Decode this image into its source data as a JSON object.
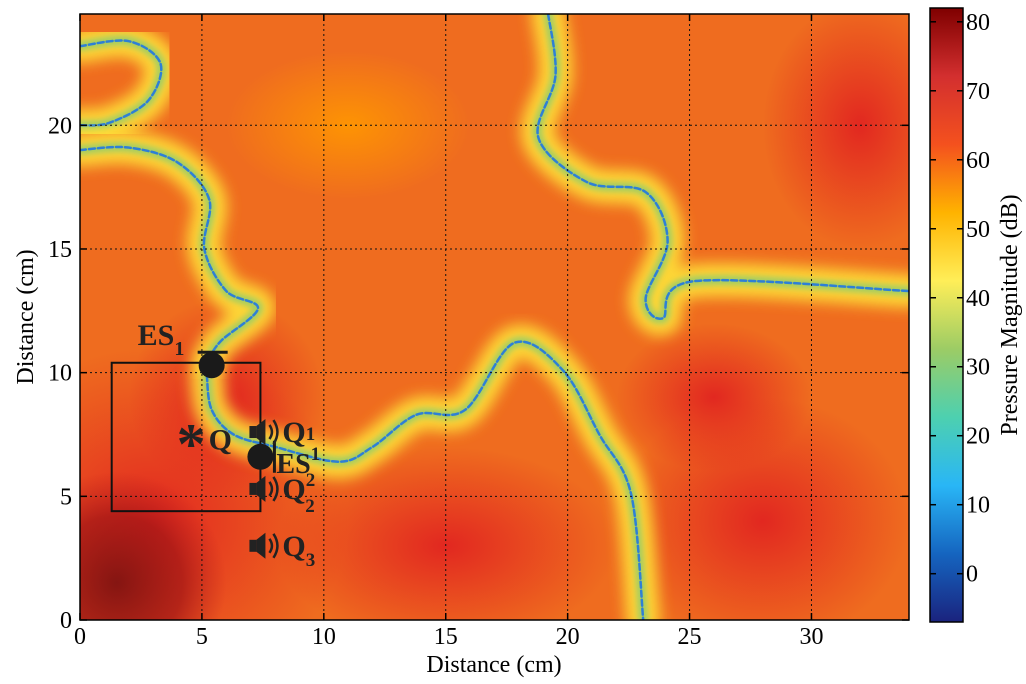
{
  "chart_data": {
    "type": "heatmap",
    "title": "",
    "xlabel": "Distance (cm)",
    "ylabel": "Distance (cm)",
    "xlim": [
      0,
      34
    ],
    "ylim": [
      0,
      24.5
    ],
    "x_ticks": [
      0,
      5,
      10,
      15,
      20,
      25,
      30
    ],
    "y_ticks": [
      0,
      5,
      10,
      15,
      20
    ],
    "grid": true,
    "colorbar": {
      "label": "Pressure Magnitude (dB)",
      "range": [
        -7,
        82
      ],
      "ticks": [
        0,
        10,
        20,
        30,
        40,
        50,
        60,
        70,
        80
      ],
      "colors": [
        "#1a237e",
        "#1565c0",
        "#29b6f6",
        "#4dd0b0",
        "#9ccc65",
        "#ffee58",
        "#ffb300",
        "#f4511e",
        "#d32f2f",
        "#7f0000"
      ]
    },
    "nodal_lines": [
      [
        [
          0,
          23.2
        ],
        [
          2,
          23.4
        ],
        [
          3.3,
          22.5
        ],
        [
          2.8,
          21
        ],
        [
          1.2,
          20.1
        ],
        [
          0,
          20
        ]
      ],
      [
        [
          0,
          19
        ],
        [
          2,
          19.1
        ],
        [
          4,
          18.5
        ],
        [
          5.3,
          17
        ],
        [
          5.1,
          15
        ],
        [
          6,
          13.3
        ],
        [
          7.3,
          12.6
        ],
        [
          5.8,
          11.3
        ],
        [
          5.3,
          10.6
        ]
      ],
      [
        [
          5.2,
          9.9
        ],
        [
          5.4,
          8.5
        ],
        [
          6.3,
          7.5
        ],
        [
          8,
          7
        ],
        [
          10.6,
          6.4
        ],
        [
          12,
          7
        ],
        [
          13.8,
          8.3
        ],
        [
          15.8,
          8.5
        ],
        [
          17.8,
          11.2
        ],
        [
          19.8,
          10.1
        ],
        [
          21.3,
          7.5
        ],
        [
          22.6,
          5.1
        ],
        [
          23.1,
          0
        ]
      ],
      [
        [
          19.2,
          24.5
        ],
        [
          19.5,
          22
        ],
        [
          18.8,
          19.5
        ],
        [
          20.8,
          17.7
        ],
        [
          23.2,
          17.3
        ],
        [
          24.1,
          15.3
        ],
        [
          23.2,
          13
        ],
        [
          23.9,
          12.2
        ],
        [
          25.2,
          13.7
        ],
        [
          34,
          13.3
        ]
      ]
    ],
    "reference_region": {
      "x": [
        1.3,
        7.4
      ],
      "y": [
        4.4,
        10.4
      ]
    },
    "annotations": [
      {
        "kind": "sensor",
        "x": 5.4,
        "y": 10.3,
        "label": "ES",
        "subscript": "1"
      },
      {
        "kind": "sensor",
        "x": 7.4,
        "y": 6.6,
        "label": "ES",
        "subscript": "1"
      },
      {
        "kind": "primary-source",
        "x": 4.7,
        "y": 7.3,
        "label": "Q",
        "subscript": ""
      },
      {
        "kind": "speaker",
        "x": 7.4,
        "y": 7.6,
        "label": "Q",
        "subscript": "1"
      },
      {
        "kind": "speaker",
        "x": 7.4,
        "y": 5.3,
        "label": "Q",
        "subscript": "2",
        "superscript": "2"
      },
      {
        "kind": "speaker",
        "x": 7.4,
        "y": 3.0,
        "label": "Q",
        "subscript": "3"
      }
    ],
    "theme": {
      "background": "#ef6c1f",
      "hot": "#d31b1b",
      "hottest": "#7a1010",
      "nodal": "#2e7fd6",
      "nodal_halo": "#ffe83a"
    }
  }
}
